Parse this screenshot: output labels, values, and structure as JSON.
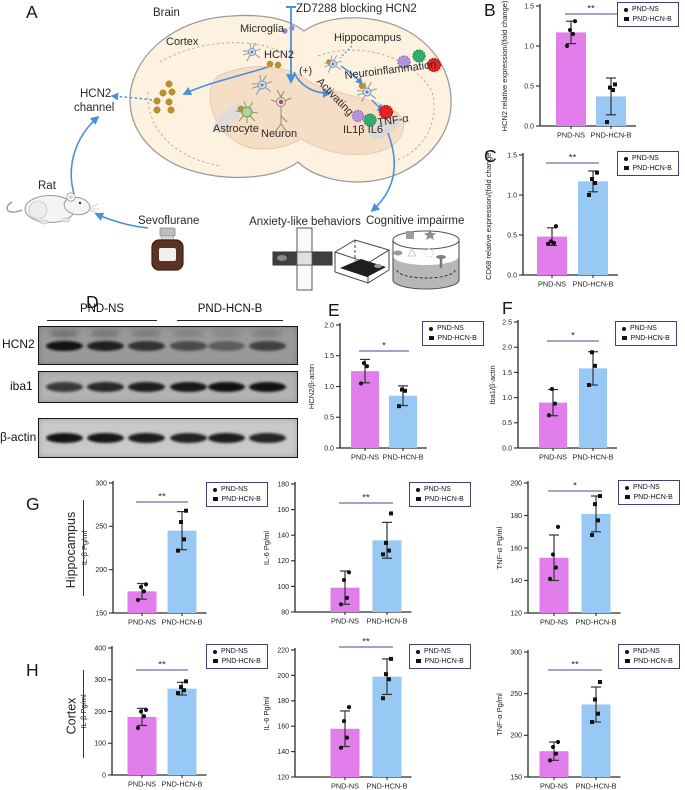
{
  "figure": {
    "panels": {
      "A": {
        "label": "A",
        "diagram": {
          "brain": "Brain",
          "cortex": "Cortex",
          "microglia": "Microglia",
          "zd7288": "ZD7288 blocking HCN2",
          "hippocampus": "Hippocampus",
          "hcn2": "HCN2",
          "plus_sign": "(+)",
          "neuroinflammation": "Neuroinflammation",
          "activating": "Activating",
          "astrocyte": "Astrocyte",
          "neuron": "Neuron",
          "il1b_il6": "IL1β IL6",
          "tnf_alpha": "TNF-α",
          "hcn2_channel_line1": "HCN2",
          "hcn2_channel_line2": "channel",
          "rat": "Rat",
          "sevoflurane": "Sevoflurane",
          "anxiety": "Anxiety-like behaviors",
          "cognitive": "Cognitive impairment"
        }
      },
      "B": {
        "label": "B"
      },
      "C": {
        "label": "C"
      },
      "D": {
        "label": "D"
      },
      "E": {
        "label": "E"
      },
      "F": {
        "label": "F"
      },
      "G": {
        "label": "G",
        "region_label": "Hippocampus"
      },
      "H": {
        "label": "H",
        "region_label": "Cortex"
      }
    },
    "legend": {
      "items": [
        {
          "label": "PND-NS",
          "marker": "circle"
        },
        {
          "label": "PND-HCN-B",
          "marker": "square"
        }
      ]
    },
    "colors": {
      "bar_ns": "#e27eeb",
      "bar_hcnb": "#98c9f4",
      "sig_line": "#8289b6",
      "legend_border": "#3d4272",
      "axis": "#2a2a2a",
      "error": "#333333",
      "point": "#111111",
      "brain_fill": "#fdf2e0",
      "brain_inner": "#f6ddc5",
      "arrow_blue": "#4a90d9",
      "gold": "#bd9030",
      "cytokine_purple": "#b493dc",
      "cytokine_green": "#2fae6e",
      "cytokine_red": "#e62420"
    }
  },
  "panel_d": {
    "groups": [
      "PND-NS",
      "PND-HCN-B"
    ],
    "rows": [
      {
        "label": "HCN2",
        "bg": "#999999",
        "smear": true,
        "bands": [
          0.95,
          0.85,
          0.72,
          0.55,
          0.42,
          0.62
        ]
      },
      {
        "label": "iba1",
        "bg": "#b3b3b3",
        "smear": false,
        "bands": [
          0.72,
          0.82,
          0.88,
          0.92,
          0.96,
          0.96
        ]
      },
      {
        "label": "β-actin",
        "bg": "#c9c9c9",
        "smear": false,
        "bands": [
          0.95,
          0.93,
          0.9,
          0.88,
          0.9,
          0.86
        ]
      }
    ]
  },
  "chart_data": [
    {
      "id": "B",
      "type": "bar",
      "ylabel": "HCN2 relative expression/(fold change)",
      "ylim": [
        0,
        1.5
      ],
      "yticks": [
        {
          "v": 0,
          "label": "0.0"
        },
        {
          "v": 0.5,
          "label": "0.5"
        },
        {
          "v": 1.0,
          "label": "1.0"
        },
        {
          "v": 1.5,
          "label": "1.5"
        }
      ],
      "categories": [
        "PND-NS",
        "PND-HCN-B"
      ],
      "means": [
        1.17,
        0.37
      ],
      "sd": [
        0.14,
        0.23
      ],
      "points": [
        [
          1.0,
          1.15,
          1.2,
          1.31
        ],
        [
          0.05,
          0.45,
          0.48,
          0.52
        ]
      ],
      "sig": "**"
    },
    {
      "id": "C",
      "type": "bar",
      "ylabel": "CD68 relative expression/(fold change)",
      "ylim": [
        0,
        1.5
      ],
      "yticks": [
        {
          "v": 0,
          "label": "0.0"
        },
        {
          "v": 0.5,
          "label": "0.5"
        },
        {
          "v": 1.0,
          "label": "1.0"
        },
        {
          "v": 1.5,
          "label": "1.5"
        }
      ],
      "categories": [
        "PND-NS",
        "PND-HCN-B"
      ],
      "means": [
        0.48,
        1.17
      ],
      "sd": [
        0.11,
        0.13
      ],
      "points": [
        [
          0.39,
          0.4,
          0.42,
          0.61
        ],
        [
          1.0,
          1.15,
          1.2,
          1.28
        ]
      ],
      "sig": "**"
    },
    {
      "id": "E",
      "type": "bar",
      "ylabel": "HCN2/β-actin",
      "ylim": [
        0,
        2
      ],
      "yticks": [
        {
          "v": 0,
          "label": "0.0"
        },
        {
          "v": 0.5,
          "label": "0.5"
        },
        {
          "v": 1.0,
          "label": "1.0"
        },
        {
          "v": 1.5,
          "label": "1.5"
        },
        {
          "v": 2.0,
          "label": "2.0"
        }
      ],
      "categories": [
        "PND-NS",
        "PND-HCN-B"
      ],
      "means": [
        1.25,
        0.85
      ],
      "sd": [
        0.19,
        0.16
      ],
      "points": [
        [
          1.05,
          1.33,
          1.38
        ],
        [
          0.68,
          0.93,
          0.95
        ]
      ],
      "sig": "*"
    },
    {
      "id": "F",
      "type": "bar",
      "ylabel": "Iba1/β-actin",
      "ylim": [
        0,
        2.5
      ],
      "yticks": [
        {
          "v": 0,
          "label": "0.0"
        },
        {
          "v": 0.5,
          "label": "0.5"
        },
        {
          "v": 1.0,
          "label": "1.0"
        },
        {
          "v": 1.5,
          "label": "1.5"
        },
        {
          "v": 2.0,
          "label": "2.0"
        },
        {
          "v": 2.5,
          "label": "2.5"
        }
      ],
      "categories": [
        "PND-NS",
        "PND-HCN-B"
      ],
      "means": [
        0.9,
        1.58
      ],
      "sd": [
        0.26,
        0.33
      ],
      "points": [
        [
          0.65,
          0.88,
          1.17
        ],
        [
          1.25,
          1.63,
          1.9
        ]
      ],
      "sig": "*"
    },
    {
      "id": "G1",
      "type": "bar",
      "ylabel": "IL-β Pg/ml",
      "ylim": [
        150,
        300
      ],
      "yticks": [
        {
          "v": 150,
          "label": "150"
        },
        {
          "v": 200,
          "label": "200"
        },
        {
          "v": 250,
          "label": "250"
        },
        {
          "v": 300,
          "label": "300"
        }
      ],
      "categories": [
        "PND-NS",
        "PND-HCN-B"
      ],
      "means": [
        175,
        245
      ],
      "sd": [
        9,
        22
      ],
      "points": [
        [
          165,
          175,
          180,
          183
        ],
        [
          222,
          235,
          255,
          268
        ]
      ],
      "sig": "**"
    },
    {
      "id": "G2",
      "type": "bar",
      "ylabel": "IL-6 Pg/ml",
      "ylim": [
        80,
        180
      ],
      "yticks": [
        {
          "v": 80,
          "label": "80"
        },
        {
          "v": 100,
          "label": "100"
        },
        {
          "v": 120,
          "label": "120"
        },
        {
          "v": 140,
          "label": "140"
        },
        {
          "v": 160,
          "label": "160"
        },
        {
          "v": 180,
          "label": "180"
        }
      ],
      "categories": [
        "PND-NS",
        "PND-HCN-B"
      ],
      "means": [
        99,
        136
      ],
      "sd": [
        13,
        14
      ],
      "points": [
        [
          86,
          91,
          105,
          111
        ],
        [
          125,
          128,
          134,
          157
        ]
      ],
      "sig": "**"
    },
    {
      "id": "G3",
      "type": "bar",
      "ylabel": "TNF-α Pg/ml",
      "ylim": [
        120,
        200
      ],
      "yticks": [
        {
          "v": 120,
          "label": "120"
        },
        {
          "v": 140,
          "label": "140"
        },
        {
          "v": 160,
          "label": "160"
        },
        {
          "v": 180,
          "label": "180"
        },
        {
          "v": 200,
          "label": "200"
        }
      ],
      "categories": [
        "PND-NS",
        "PND-HCN-B"
      ],
      "means": [
        154,
        181
      ],
      "sd": [
        14,
        11
      ],
      "points": [
        [
          141,
          148,
          156,
          173
        ],
        [
          168,
          177,
          187,
          192
        ]
      ],
      "sig": "*"
    },
    {
      "id": "H1",
      "type": "bar",
      "ylabel": "IL-β Pg/ml",
      "ylim": [
        0,
        400
      ],
      "yticks": [
        {
          "v": 0,
          "label": "0"
        },
        {
          "v": 100,
          "label": "100"
        },
        {
          "v": 200,
          "label": "200"
        },
        {
          "v": 300,
          "label": "300"
        },
        {
          "v": 400,
          "label": "400"
        }
      ],
      "categories": [
        "PND-NS",
        "PND-HCN-B"
      ],
      "means": [
        183,
        272
      ],
      "sd": [
        27,
        20
      ],
      "points": [
        [
          148,
          185,
          200,
          205
        ],
        [
          258,
          267,
          277,
          295
        ]
      ],
      "sig": "**"
    },
    {
      "id": "H2",
      "type": "bar",
      "ylabel": "IL-6 Pg/ml",
      "ylim": [
        120,
        220
      ],
      "yticks": [
        {
          "v": 120,
          "label": "120"
        },
        {
          "v": 140,
          "label": "140"
        },
        {
          "v": 160,
          "label": "160"
        },
        {
          "v": 180,
          "label": "180"
        },
        {
          "v": 200,
          "label": "200"
        },
        {
          "v": 220,
          "label": "220"
        }
      ],
      "categories": [
        "PND-NS",
        "PND-HCN-B"
      ],
      "means": [
        158,
        199
      ],
      "sd": [
        14,
        14
      ],
      "points": [
        [
          143,
          151,
          164,
          175
        ],
        [
          182,
          197,
          201,
          213
        ]
      ],
      "sig": "**"
    },
    {
      "id": "H3",
      "type": "bar",
      "ylabel": "TNF-α Pg/ml",
      "ylim": [
        150,
        300
      ],
      "yticks": [
        {
          "v": 150,
          "label": "150"
        },
        {
          "v": 200,
          "label": "200"
        },
        {
          "v": 250,
          "label": "250"
        },
        {
          "v": 300,
          "label": "300"
        }
      ],
      "categories": [
        "PND-NS",
        "PND-HCN-B"
      ],
      "means": [
        181,
        237
      ],
      "sd": [
        11,
        21
      ],
      "points": [
        [
          170,
          178,
          186,
          192
        ],
        [
          216,
          226,
          243,
          264
        ]
      ],
      "sig": "**"
    }
  ]
}
